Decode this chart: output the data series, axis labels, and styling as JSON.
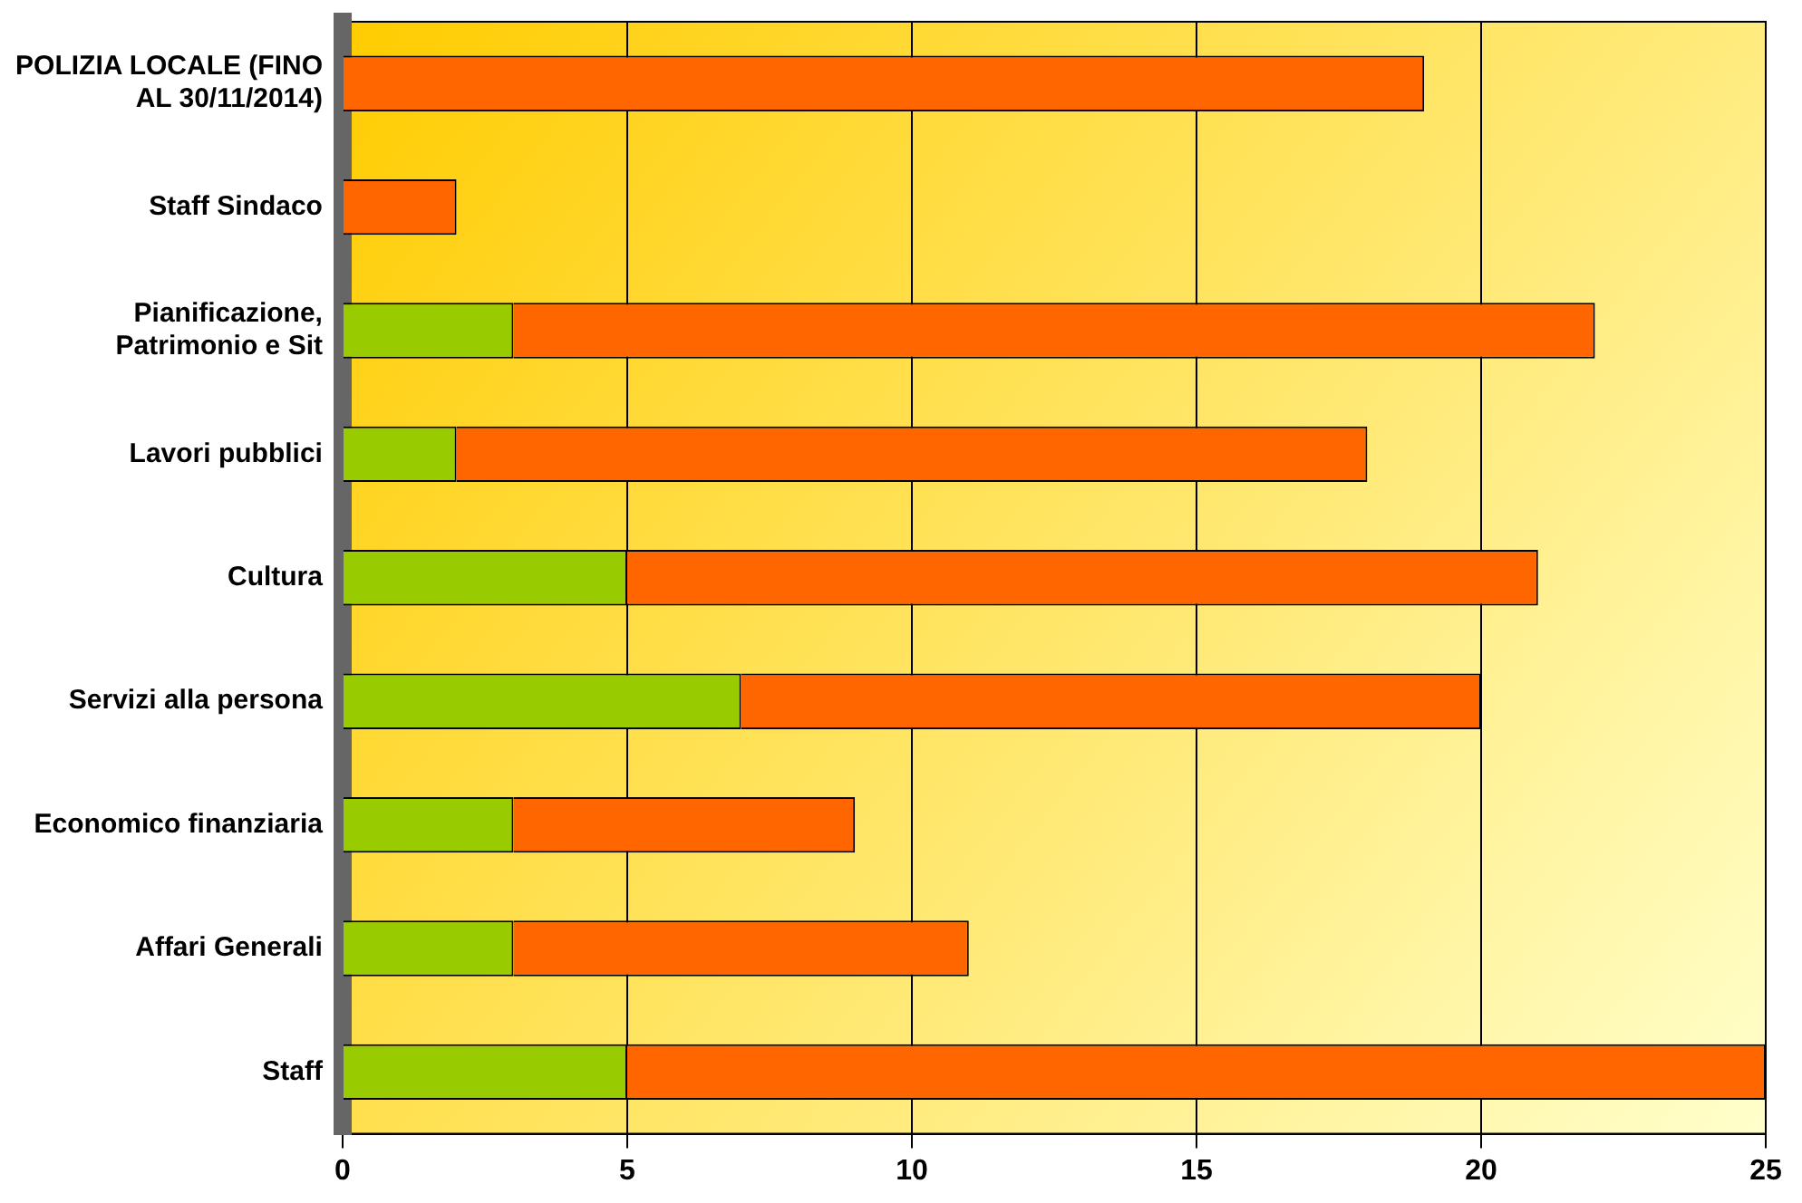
{
  "chart_data": {
    "type": "bar",
    "orientation": "horizontal",
    "stacked": true,
    "categories": [
      "POLIZIA LOCALE (FINO AL 30/11/2014)",
      "Staff Sindaco",
      "Pianificazione, Patrimonio e Sit",
      "Lavori pubblici",
      "Cultura",
      "Servizi alla persona",
      "Economico finanziaria",
      "Affari Generali",
      "Staff"
    ],
    "series": [
      {
        "color": "#99cc00",
        "values": [
          0,
          0,
          3,
          2,
          5,
          7,
          3,
          3,
          5
        ]
      },
      {
        "color": "#ff6600",
        "values": [
          19,
          2,
          19,
          16,
          16,
          13,
          6,
          8,
          20
        ]
      }
    ],
    "xlim": [
      0,
      25
    ],
    "xticks": [
      0,
      5,
      10,
      15,
      20,
      25
    ],
    "grid": "x",
    "legend": false
  }
}
